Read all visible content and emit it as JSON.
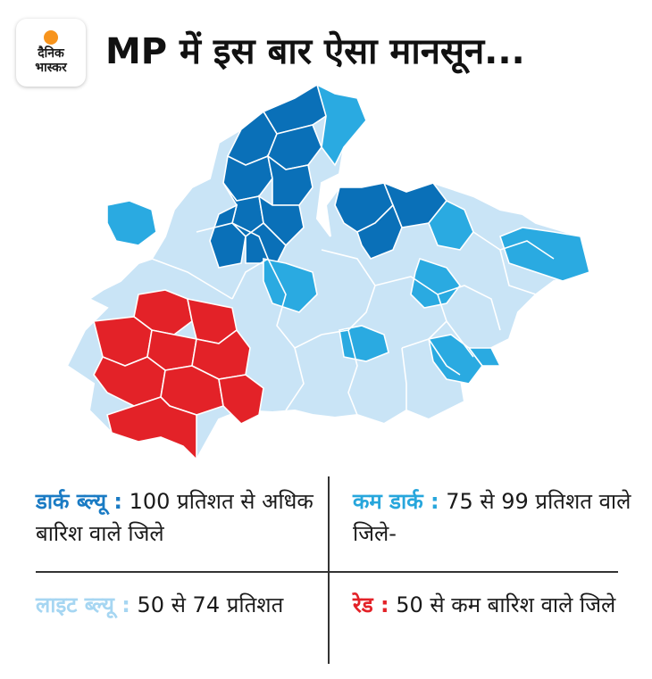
{
  "brand": {
    "line1": "दैनिक",
    "line2": "भास्कर"
  },
  "title": "MP में इस बार ऐसा मानसून...",
  "colors": {
    "dark_blue": "#0a70b8",
    "medium_blue": "#2aaae1",
    "light_blue": "#c9e4f6",
    "red": "#e32228",
    "border": "#ffffff",
    "key_dark": "#1a7bc4",
    "key_medium": "#27a6dc",
    "key_light": "#a6d6f2",
    "key_red": "#e32228"
  },
  "legend": {
    "dark": {
      "key": "डार्क ब्ल्यू :",
      "text": " 100 प्रतिशत से अधिक बारिश वाले जिले"
    },
    "medium": {
      "key": "कम डार्क :",
      "text": " 75 से 99 प्रतिशत वाले जिले-"
    },
    "light": {
      "key": "लाइट ब्ल्यू :",
      "text": " 50 से 74 प्रतिशत"
    },
    "red": {
      "key": "रेड :",
      "text": " 50 से कम बारिश वाले जिले"
    }
  },
  "districts": [
    {
      "cat": "dark"
    },
    {
      "cat": "dark"
    },
    {
      "cat": "dark"
    },
    {
      "cat": "dark"
    },
    {
      "cat": "dark"
    },
    {
      "cat": "dark"
    },
    {
      "cat": "dark"
    },
    {
      "cat": "dark"
    },
    {
      "cat": "dark"
    },
    {
      "cat": "dark"
    },
    {
      "cat": "dark"
    },
    {
      "cat": "dark"
    },
    {
      "cat": "medium"
    },
    {
      "cat": "medium"
    },
    {
      "cat": "medium"
    },
    {
      "cat": "medium"
    },
    {
      "cat": "medium"
    },
    {
      "cat": "medium"
    },
    {
      "cat": "medium"
    },
    {
      "cat": "medium"
    },
    {
      "cat": "medium"
    },
    {
      "cat": "red"
    },
    {
      "cat": "red"
    },
    {
      "cat": "red"
    },
    {
      "cat": "red"
    },
    {
      "cat": "red"
    },
    {
      "cat": "red"
    },
    {
      "cat": "red"
    },
    {
      "cat": "red"
    },
    {
      "cat": "red"
    }
  ]
}
